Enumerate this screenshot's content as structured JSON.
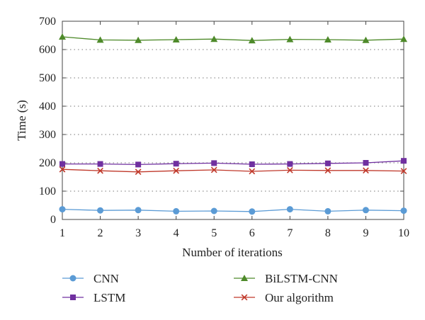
{
  "chart_data": {
    "type": "line",
    "xlabel": "Number of iterations",
    "ylabel": "Time (s)",
    "x": [
      1,
      2,
      3,
      4,
      5,
      6,
      7,
      8,
      9,
      10
    ],
    "xlim": [
      1,
      10
    ],
    "ylim": [
      0,
      700
    ],
    "yticks": [
      0,
      100,
      200,
      300,
      400,
      500,
      600,
      700
    ],
    "grid": "horizontal-dotted",
    "legend_position": "bottom",
    "series": [
      {
        "name": "CNN",
        "color": "#5b9bd5",
        "marker": "circle",
        "values": [
          36,
          32,
          33,
          29,
          30,
          28,
          36,
          29,
          33,
          31
        ]
      },
      {
        "name": "LSTM",
        "color": "#7030a0",
        "marker": "square",
        "values": [
          196,
          196,
          194,
          197,
          199,
          195,
          196,
          198,
          200,
          207
        ]
      },
      {
        "name": "BiLSTM-CNN",
        "color": "#4e8a2a",
        "marker": "triangle",
        "values": [
          645,
          634,
          633,
          635,
          637,
          632,
          636,
          635,
          633,
          637
        ]
      },
      {
        "name": "Our algorithm",
        "color": "#c0392b",
        "marker": "cross",
        "values": [
          177,
          172,
          168,
          172,
          175,
          170,
          174,
          173,
          173,
          171
        ]
      }
    ]
  }
}
